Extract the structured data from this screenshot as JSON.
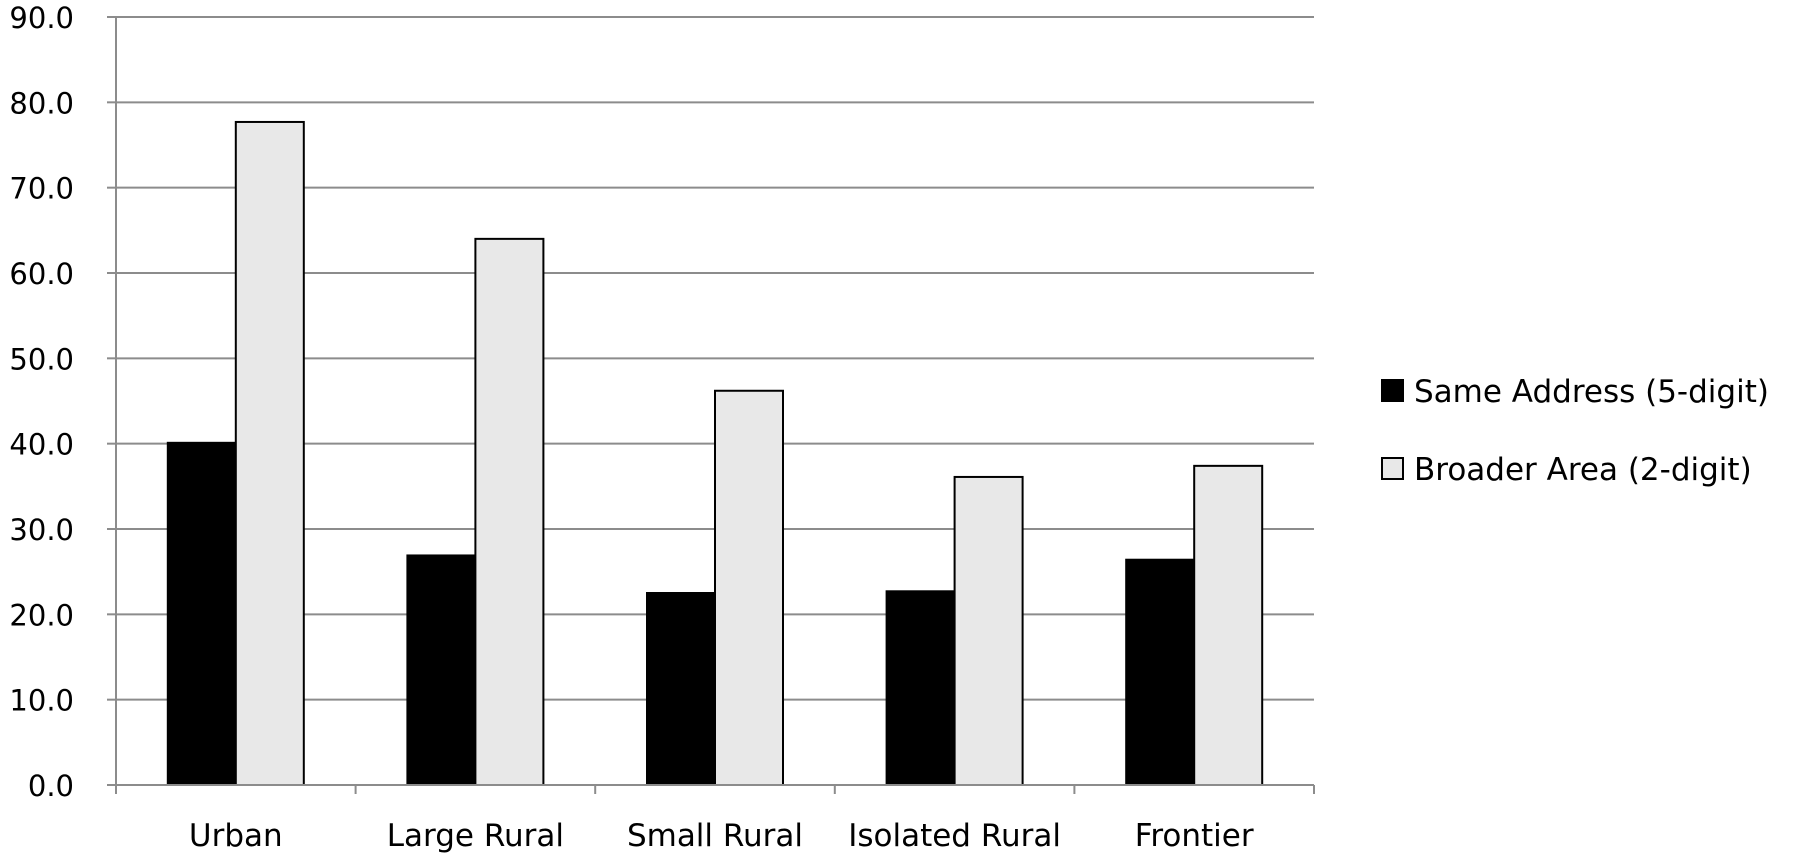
{
  "chart_data": {
    "type": "bar",
    "categories": [
      "Urban",
      "Large Rural",
      "Small Rural",
      "Isolated Rural",
      "Frontier"
    ],
    "series": [
      {
        "name": "Same Address (5-digit)",
        "values": [
          40.1,
          26.9,
          22.5,
          22.7,
          26.4
        ],
        "color": "#000000"
      },
      {
        "name": "Broader Area (2-digit)",
        "values": [
          77.7,
          64.0,
          46.2,
          36.1,
          37.4
        ],
        "color": "#e8e8e8"
      }
    ],
    "yticks": [
      "0.0",
      "10.0",
      "20.0",
      "30.0",
      "40.0",
      "50.0",
      "60.0",
      "70.0",
      "80.0",
      "90.0"
    ],
    "ylim": [
      0,
      90
    ],
    "grid": true,
    "legend_position": "right",
    "title": "",
    "xlabel": "",
    "ylabel": ""
  }
}
